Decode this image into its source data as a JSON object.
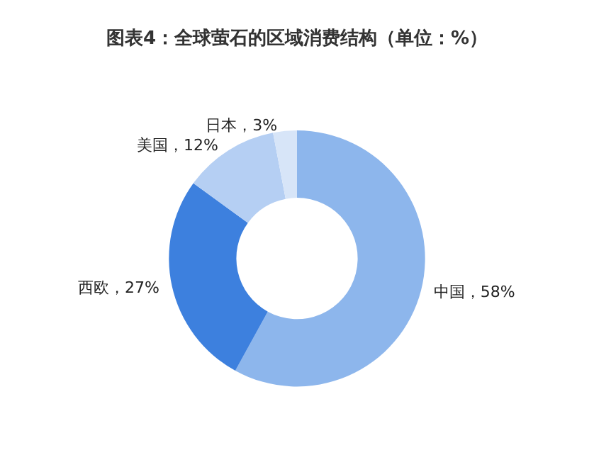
{
  "chart_data": {
    "type": "donut",
    "title": "图表4：全球萤石的区域消费结构（单位：%）",
    "categories": [
      "中国",
      "西欧",
      "美国",
      "日本"
    ],
    "values": [
      58,
      27,
      12,
      3
    ],
    "colors": [
      "#8db6ec",
      "#3d80de",
      "#b5cff3",
      "#d7e5f8"
    ],
    "value_labels": [
      "58%",
      "27%",
      "12%",
      "3%"
    ],
    "legend": false
  }
}
